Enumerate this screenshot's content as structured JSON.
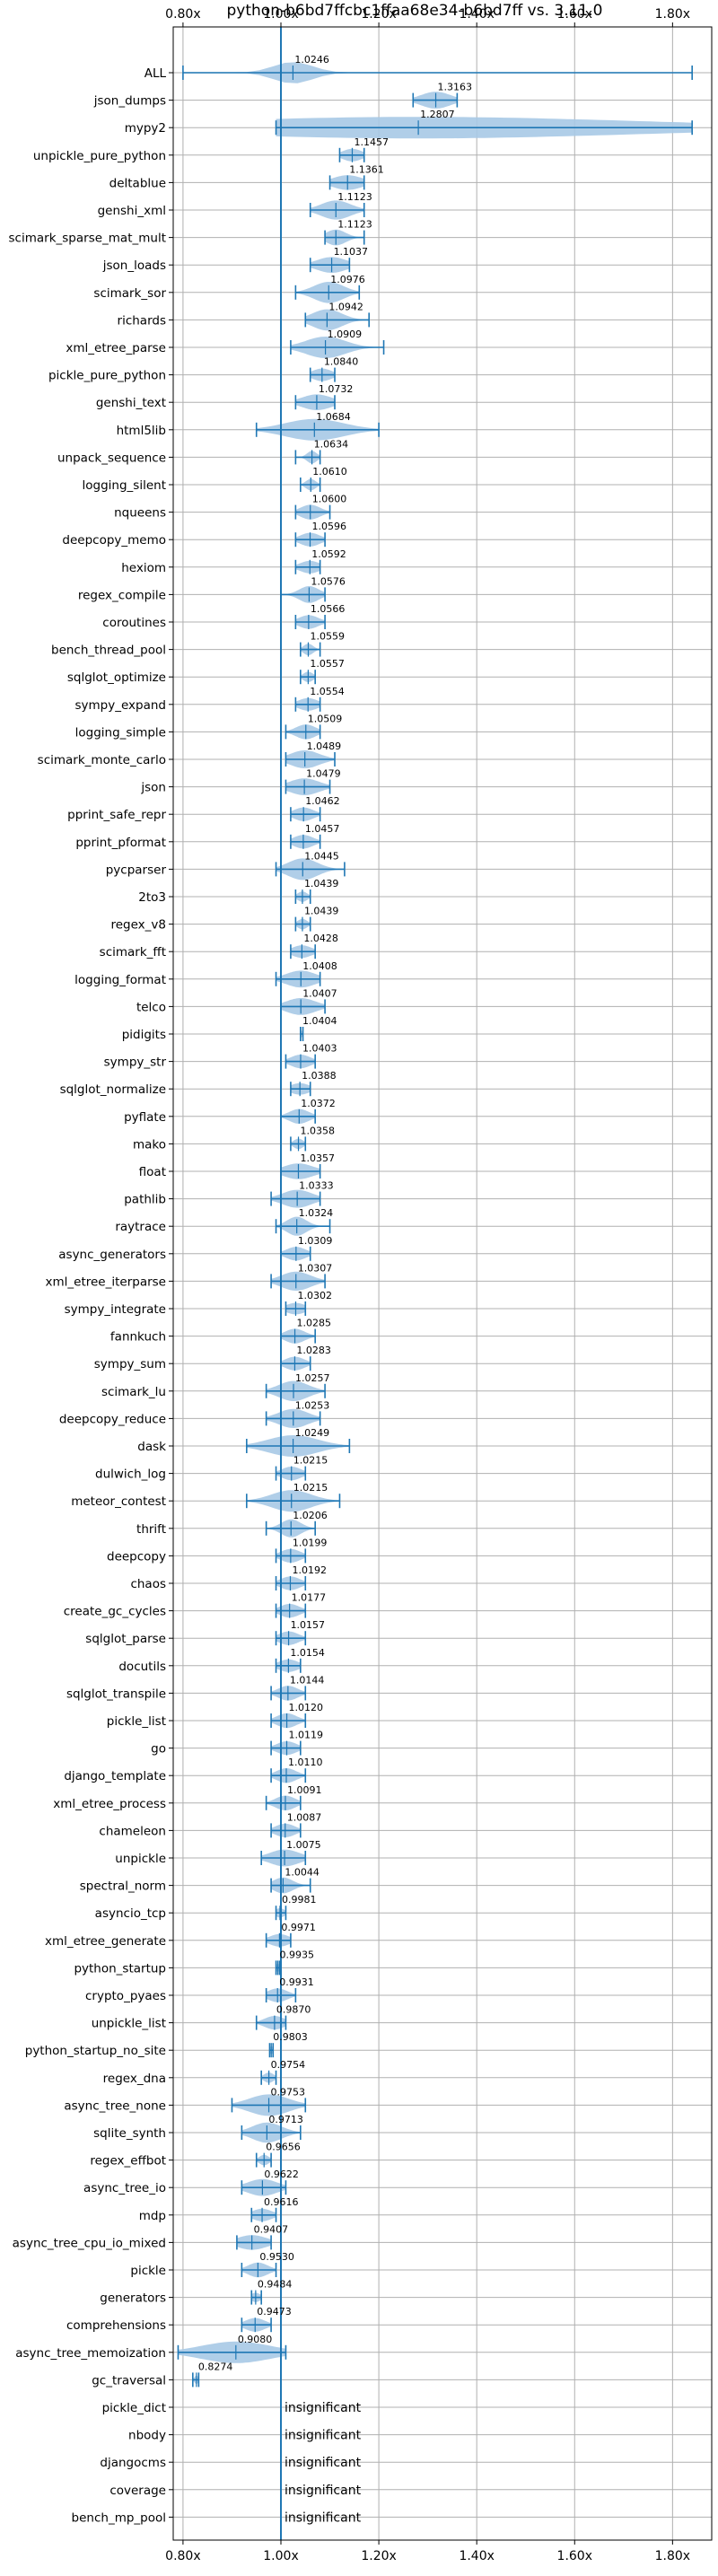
{
  "chart_data": {
    "type": "violin",
    "title": "python-b6bd7ffcbc1ffaa68e34-b6bd7ff vs. 3.11.0",
    "xlabel": "",
    "ylabel": "",
    "xlim": [
      0.78,
      1.88
    ],
    "x_ticks": [
      0.8,
      1.0,
      1.2,
      1.4,
      1.6,
      1.8
    ],
    "x_tick_labels": [
      "0.80x",
      "1.00x",
      "1.20x",
      "1.40x",
      "1.60x",
      "1.80x"
    ],
    "x_axis_top_and_bottom": true,
    "grid": true,
    "reference_line": 1.0,
    "colors": {
      "fill": "#a7c9e6",
      "line": "#1f77b4",
      "grid": "#b0b0b0"
    },
    "insignificant_text": "insignificant",
    "benchmarks": [
      {
        "name": "ALL",
        "value": 1.0246,
        "label": "1.0246",
        "min": 0.8,
        "max": 1.84,
        "spread": 0.04
      },
      {
        "name": "json_dumps",
        "value": 1.3163,
        "label": "1.3163",
        "min": 1.27,
        "max": 1.36,
        "spread": 0.03
      },
      {
        "name": "mypy2",
        "value": 1.2807,
        "label": "1.2807",
        "min": 0.99,
        "max": 1.84,
        "spread": 0.45
      },
      {
        "name": "unpickle_pure_python",
        "value": 1.1457,
        "label": "1.1457",
        "min": 1.12,
        "max": 1.17,
        "spread": 0.02
      },
      {
        "name": "deltablue",
        "value": 1.1361,
        "label": "1.1361",
        "min": 1.1,
        "max": 1.17,
        "spread": 0.03
      },
      {
        "name": "genshi_xml",
        "value": 1.1123,
        "label": "1.1123",
        "min": 1.06,
        "max": 1.17,
        "spread": 0.03
      },
      {
        "name": "scimark_sparse_mat_mult",
        "value": 1.1123,
        "label": "1.1123",
        "min": 1.09,
        "max": 1.17,
        "spread": 0.02
      },
      {
        "name": "json_loads",
        "value": 1.1037,
        "label": "1.1037",
        "min": 1.06,
        "max": 1.14,
        "spread": 0.03
      },
      {
        "name": "scimark_sor",
        "value": 1.0976,
        "label": "1.0976",
        "min": 1.03,
        "max": 1.16,
        "spread": 0.03
      },
      {
        "name": "richards",
        "value": 1.0942,
        "label": "1.0942",
        "min": 1.05,
        "max": 1.18,
        "spread": 0.03
      },
      {
        "name": "xml_etree_parse",
        "value": 1.0909,
        "label": "1.0909",
        "min": 1.02,
        "max": 1.21,
        "spread": 0.04
      },
      {
        "name": "pickle_pure_python",
        "value": 1.084,
        "label": "1.0840",
        "min": 1.06,
        "max": 1.11,
        "spread": 0.02
      },
      {
        "name": "genshi_text",
        "value": 1.0732,
        "label": "1.0732",
        "min": 1.03,
        "max": 1.11,
        "spread": 0.03
      },
      {
        "name": "html5lib",
        "value": 1.0684,
        "label": "1.0684",
        "min": 0.95,
        "max": 1.2,
        "spread": 0.06
      },
      {
        "name": "unpack_sequence",
        "value": 1.0634,
        "label": "1.0634",
        "min": 1.03,
        "max": 1.08,
        "spread": 0.01
      },
      {
        "name": "logging_silent",
        "value": 1.061,
        "label": "1.0610",
        "min": 1.04,
        "max": 1.08,
        "spread": 0.01
      },
      {
        "name": "nqueens",
        "value": 1.06,
        "label": "1.0600",
        "min": 1.03,
        "max": 1.1,
        "spread": 0.02
      },
      {
        "name": "deepcopy_memo",
        "value": 1.0596,
        "label": "1.0596",
        "min": 1.03,
        "max": 1.09,
        "spread": 0.02
      },
      {
        "name": "hexiom",
        "value": 1.0592,
        "label": "1.0592",
        "min": 1.03,
        "max": 1.08,
        "spread": 0.02
      },
      {
        "name": "regex_compile",
        "value": 1.0576,
        "label": "1.0576",
        "min": 1.0,
        "max": 1.09,
        "spread": 0.02
      },
      {
        "name": "coroutines",
        "value": 1.0566,
        "label": "1.0566",
        "min": 1.03,
        "max": 1.09,
        "spread": 0.02
      },
      {
        "name": "bench_thread_pool",
        "value": 1.0559,
        "label": "1.0559",
        "min": 1.04,
        "max": 1.08,
        "spread": 0.01
      },
      {
        "name": "sqlglot_optimize",
        "value": 1.0557,
        "label": "1.0557",
        "min": 1.04,
        "max": 1.07,
        "spread": 0.01
      },
      {
        "name": "sympy_expand",
        "value": 1.0554,
        "label": "1.0554",
        "min": 1.03,
        "max": 1.08,
        "spread": 0.02
      },
      {
        "name": "logging_simple",
        "value": 1.0509,
        "label": "1.0509",
        "min": 1.01,
        "max": 1.08,
        "spread": 0.02
      },
      {
        "name": "scimark_monte_carlo",
        "value": 1.0489,
        "label": "1.0489",
        "min": 1.01,
        "max": 1.11,
        "spread": 0.03
      },
      {
        "name": "json",
        "value": 1.0479,
        "label": "1.0479",
        "min": 1.01,
        "max": 1.1,
        "spread": 0.03
      },
      {
        "name": "pprint_safe_repr",
        "value": 1.0462,
        "label": "1.0462",
        "min": 1.02,
        "max": 1.08,
        "spread": 0.02
      },
      {
        "name": "pprint_pformat",
        "value": 1.0457,
        "label": "1.0457",
        "min": 1.02,
        "max": 1.08,
        "spread": 0.02
      },
      {
        "name": "pycparser",
        "value": 1.0445,
        "label": "1.0445",
        "min": 0.99,
        "max": 1.13,
        "spread": 0.03
      },
      {
        "name": "2to3",
        "value": 1.0439,
        "label": "1.0439",
        "min": 1.03,
        "max": 1.06,
        "spread": 0.01
      },
      {
        "name": "regex_v8",
        "value": 1.0439,
        "label": "1.0439",
        "min": 1.03,
        "max": 1.06,
        "spread": 0.01
      },
      {
        "name": "scimark_fft",
        "value": 1.0428,
        "label": "1.0428",
        "min": 1.02,
        "max": 1.07,
        "spread": 0.02
      },
      {
        "name": "logging_format",
        "value": 1.0408,
        "label": "1.0408",
        "min": 0.99,
        "max": 1.08,
        "spread": 0.03
      },
      {
        "name": "telco",
        "value": 1.0407,
        "label": "1.0407",
        "min": 1.0,
        "max": 1.09,
        "spread": 0.03
      },
      {
        "name": "pidigits",
        "value": 1.0404,
        "label": "1.0404",
        "min": 1.04,
        "max": 1.045,
        "spread": 0.003
      },
      {
        "name": "sympy_str",
        "value": 1.0403,
        "label": "1.0403",
        "min": 1.01,
        "max": 1.07,
        "spread": 0.02
      },
      {
        "name": "sqlglot_normalize",
        "value": 1.0388,
        "label": "1.0388",
        "min": 1.02,
        "max": 1.06,
        "spread": 0.02
      },
      {
        "name": "pyflate",
        "value": 1.0372,
        "label": "1.0372",
        "min": 1.0,
        "max": 1.07,
        "spread": 0.02
      },
      {
        "name": "mako",
        "value": 1.0358,
        "label": "1.0358",
        "min": 1.02,
        "max": 1.05,
        "spread": 0.01
      },
      {
        "name": "float",
        "value": 1.0357,
        "label": "1.0357",
        "min": 1.0,
        "max": 1.08,
        "spread": 0.03
      },
      {
        "name": "pathlib",
        "value": 1.0333,
        "label": "1.0333",
        "min": 0.98,
        "max": 1.08,
        "spread": 0.03
      },
      {
        "name": "raytrace",
        "value": 1.0324,
        "label": "1.0324",
        "min": 0.99,
        "max": 1.1,
        "spread": 0.02
      },
      {
        "name": "async_generators",
        "value": 1.0309,
        "label": "1.0309",
        "min": 1.0,
        "max": 1.06,
        "spread": 0.02
      },
      {
        "name": "xml_etree_iterparse",
        "value": 1.0307,
        "label": "1.0307",
        "min": 0.98,
        "max": 1.09,
        "spread": 0.03
      },
      {
        "name": "sympy_integrate",
        "value": 1.0302,
        "label": "1.0302",
        "min": 1.01,
        "max": 1.05,
        "spread": 0.02
      },
      {
        "name": "fannkuch",
        "value": 1.0285,
        "label": "1.0285",
        "min": 1.0,
        "max": 1.07,
        "spread": 0.02
      },
      {
        "name": "sympy_sum",
        "value": 1.0283,
        "label": "1.0283",
        "min": 1.0,
        "max": 1.06,
        "spread": 0.02
      },
      {
        "name": "scimark_lu",
        "value": 1.0257,
        "label": "1.0257",
        "min": 0.97,
        "max": 1.09,
        "spread": 0.03
      },
      {
        "name": "deepcopy_reduce",
        "value": 1.0253,
        "label": "1.0253",
        "min": 0.97,
        "max": 1.08,
        "spread": 0.03
      },
      {
        "name": "dask",
        "value": 1.0249,
        "label": "1.0249",
        "min": 0.93,
        "max": 1.14,
        "spread": 0.05
      },
      {
        "name": "dulwich_log",
        "value": 1.0215,
        "label": "1.0215",
        "min": 0.99,
        "max": 1.05,
        "spread": 0.02
      },
      {
        "name": "meteor_contest",
        "value": 1.0215,
        "label": "1.0215",
        "min": 0.93,
        "max": 1.12,
        "spread": 0.04
      },
      {
        "name": "thrift",
        "value": 1.0206,
        "label": "1.0206",
        "min": 0.97,
        "max": 1.07,
        "spread": 0.02
      },
      {
        "name": "deepcopy",
        "value": 1.0199,
        "label": "1.0199",
        "min": 0.99,
        "max": 1.05,
        "spread": 0.02
      },
      {
        "name": "chaos",
        "value": 1.0192,
        "label": "1.0192",
        "min": 0.99,
        "max": 1.05,
        "spread": 0.02
      },
      {
        "name": "create_gc_cycles",
        "value": 1.0177,
        "label": "1.0177",
        "min": 0.99,
        "max": 1.05,
        "spread": 0.02
      },
      {
        "name": "sqlglot_parse",
        "value": 1.0157,
        "label": "1.0157",
        "min": 0.99,
        "max": 1.05,
        "spread": 0.02
      },
      {
        "name": "docutils",
        "value": 1.0154,
        "label": "1.0154",
        "min": 0.99,
        "max": 1.04,
        "spread": 0.02
      },
      {
        "name": "sqlglot_transpile",
        "value": 1.0144,
        "label": "1.0144",
        "min": 0.98,
        "max": 1.05,
        "spread": 0.02
      },
      {
        "name": "pickle_list",
        "value": 1.012,
        "label": "1.0120",
        "min": 0.98,
        "max": 1.05,
        "spread": 0.02
      },
      {
        "name": "go",
        "value": 1.0119,
        "label": "1.0119",
        "min": 0.98,
        "max": 1.04,
        "spread": 0.02
      },
      {
        "name": "django_template",
        "value": 1.011,
        "label": "1.0110",
        "min": 0.98,
        "max": 1.05,
        "spread": 0.02
      },
      {
        "name": "xml_etree_process",
        "value": 1.0091,
        "label": "1.0091",
        "min": 0.97,
        "max": 1.04,
        "spread": 0.02
      },
      {
        "name": "chameleon",
        "value": 1.0087,
        "label": "1.0087",
        "min": 0.98,
        "max": 1.04,
        "spread": 0.02
      },
      {
        "name": "unpickle",
        "value": 1.0075,
        "label": "1.0075",
        "min": 0.96,
        "max": 1.05,
        "spread": 0.03
      },
      {
        "name": "spectral_norm",
        "value": 1.0044,
        "label": "1.0044",
        "min": 0.98,
        "max": 1.06,
        "spread": 0.02
      },
      {
        "name": "asyncio_tcp",
        "value": 0.9981,
        "label": "0.9981",
        "min": 0.99,
        "max": 1.01,
        "spread": 0.01
      },
      {
        "name": "xml_etree_generate",
        "value": 0.9971,
        "label": "0.9971",
        "min": 0.97,
        "max": 1.02,
        "spread": 0.02
      },
      {
        "name": "python_startup",
        "value": 0.9935,
        "label": "0.9935",
        "min": 0.99,
        "max": 0.997,
        "spread": 0.004
      },
      {
        "name": "crypto_pyaes",
        "value": 0.9931,
        "label": "0.9931",
        "min": 0.97,
        "max": 1.03,
        "spread": 0.02
      },
      {
        "name": "unpickle_list",
        "value": 0.987,
        "label": "0.9870",
        "min": 0.95,
        "max": 1.01,
        "spread": 0.02
      },
      {
        "name": "python_startup_no_site",
        "value": 0.9803,
        "label": "0.9803",
        "min": 0.977,
        "max": 0.984,
        "spread": 0.003
      },
      {
        "name": "regex_dna",
        "value": 0.9754,
        "label": "0.9754",
        "min": 0.96,
        "max": 0.99,
        "spread": 0.01
      },
      {
        "name": "async_tree_none",
        "value": 0.9753,
        "label": "0.9753",
        "min": 0.9,
        "max": 1.05,
        "spread": 0.04
      },
      {
        "name": "sqlite_synth",
        "value": 0.9713,
        "label": "0.9713",
        "min": 0.92,
        "max": 1.04,
        "spread": 0.03
      },
      {
        "name": "regex_effbot",
        "value": 0.9656,
        "label": "0.9656",
        "min": 0.95,
        "max": 0.98,
        "spread": 0.01
      },
      {
        "name": "async_tree_io",
        "value": 0.9622,
        "label": "0.9622",
        "min": 0.92,
        "max": 1.01,
        "spread": 0.03
      },
      {
        "name": "mdp",
        "value": 0.9616,
        "label": "0.9616",
        "min": 0.94,
        "max": 0.99,
        "spread": 0.02
      },
      {
        "name": "async_tree_cpu_io_mixed",
        "value": 0.9407,
        "label": "0.9407",
        "min": 0.91,
        "max": 0.98,
        "spread": 0.03
      },
      {
        "name": "pickle",
        "value": 0.953,
        "label": "0.9530",
        "min": 0.92,
        "max": 0.99,
        "spread": 0.02
      },
      {
        "name": "generators",
        "value": 0.9484,
        "label": "0.9484",
        "min": 0.94,
        "max": 0.96,
        "spread": 0.01
      },
      {
        "name": "comprehensions",
        "value": 0.9473,
        "label": "0.9473",
        "min": 0.92,
        "max": 0.98,
        "spread": 0.02
      },
      {
        "name": "async_tree_memoization",
        "value": 0.908,
        "label": "0.9080",
        "min": 0.79,
        "max": 1.01,
        "spread": 0.07
      },
      {
        "name": "gc_traversal",
        "value": 0.8274,
        "label": "0.8274",
        "min": 0.82,
        "max": 0.832,
        "spread": 0.004
      },
      {
        "name": "pickle_dict",
        "value": null,
        "label": "",
        "insignificant": true
      },
      {
        "name": "nbody",
        "value": null,
        "label": "",
        "insignificant": true
      },
      {
        "name": "djangocms",
        "value": null,
        "label": "",
        "insignificant": true
      },
      {
        "name": "coverage",
        "value": null,
        "label": "",
        "insignificant": true
      },
      {
        "name": "bench_mp_pool",
        "value": null,
        "label": "",
        "insignificant": true
      }
    ]
  }
}
